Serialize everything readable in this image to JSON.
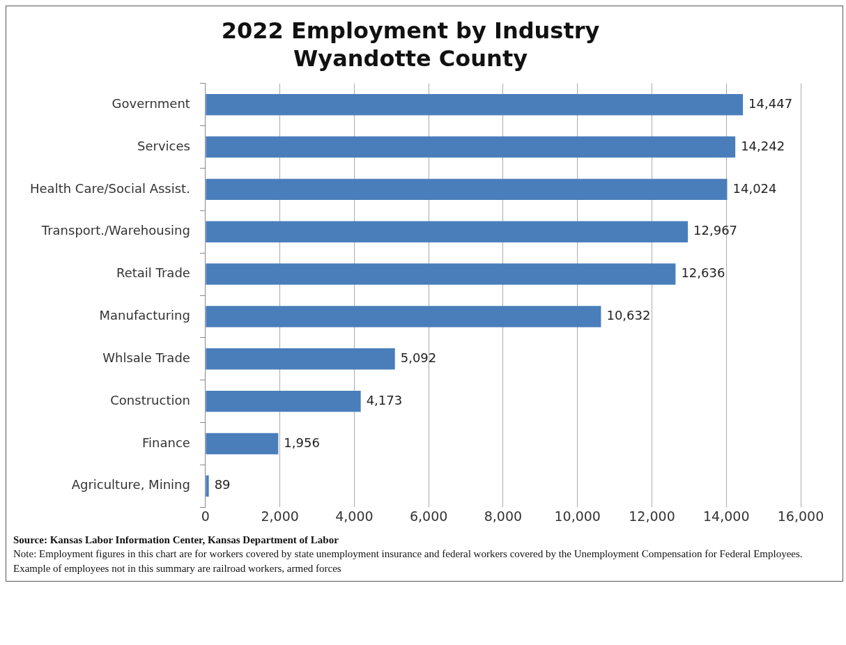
{
  "chart_data": {
    "type": "bar",
    "orientation": "horizontal",
    "title": "2022 Employment by Industry",
    "subtitle": "Wyandotte County",
    "categories": [
      "Government",
      "Services",
      "Health Care/Social Assist.",
      "Transport./Warehousing",
      "Retail Trade",
      "Manufacturing",
      "Whlsale Trade",
      "Construction",
      "Finance",
      "Agriculture, Mining"
    ],
    "values": [
      14447,
      14242,
      14024,
      12967,
      12636,
      10632,
      5092,
      4173,
      1956,
      89
    ],
    "color": "#4a7ebb",
    "value_labels": [
      "14,447",
      "14,242",
      "14,024",
      "12,967",
      "12,636",
      "10,632",
      "5,092",
      "4,173",
      "1,956",
      "89"
    ],
    "xlim": [
      0,
      16000
    ],
    "xticks": [
      0,
      {
        "value": 2000,
        "label": "2,000"
      },
      {
        "value": 4000,
        "label": "4,000"
      },
      {
        "value": 6000,
        "label": "6,000"
      },
      {
        "value": 8000,
        "label": "8,000"
      },
      {
        "value": 10000,
        "label": "10,000"
      },
      {
        "value": 12000,
        "label": "12,000"
      },
      {
        "value": 14000,
        "label": "14,000"
      },
      {
        "value": 16000,
        "label": "16,000"
      }
    ],
    "grid": "x",
    "legend": false,
    "annotations": [
      "Source: Kansas Labor Information Center, Kansas Department of Labor",
      "Note:  Employment figures in this chart are for workers covered by state unemployment insurance and federal workers covered by the Unemployment Compensation for Federal Employees.  Example of employees not in this summary are railroad workers, armed forces"
    ]
  }
}
